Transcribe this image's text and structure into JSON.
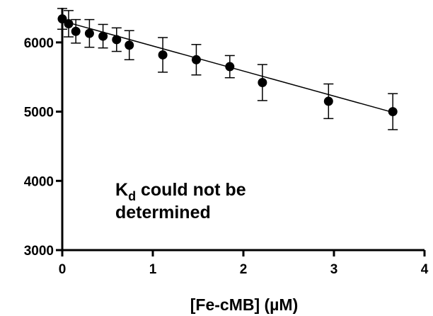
{
  "chart_data": {
    "type": "scatter",
    "title": "",
    "xlabel": "[Fe-cMB] (µM)",
    "ylabel": "",
    "xlim": [
      0,
      4
    ],
    "ylim": [
      3000,
      6500
    ],
    "x_ticks": [
      0,
      1,
      2,
      3,
      4
    ],
    "y_ticks": [
      3000,
      4000,
      5000,
      6000
    ],
    "grid": false,
    "legend": "none",
    "series": [
      {
        "x": [
          0,
          0.07,
          0.15,
          0.3,
          0.45,
          0.6,
          0.74,
          1.11,
          1.48,
          1.85,
          2.21,
          2.94,
          3.65
        ],
        "y": [
          6340,
          6270,
          6160,
          6130,
          6090,
          6040,
          5960,
          5820,
          5750,
          5650,
          5420,
          5150,
          5000
        ],
        "err": [
          150,
          190,
          170,
          200,
          170,
          170,
          210,
          250,
          220,
          160,
          260,
          250,
          260
        ]
      }
    ],
    "fit_line": {
      "x": [
        0,
        3.65
      ],
      "y": [
        6310,
        4990
      ]
    },
    "annotation": {
      "line1_main": "K",
      "line1_sub": "d",
      "line1_rest": " could not be",
      "line2": "determined"
    }
  }
}
